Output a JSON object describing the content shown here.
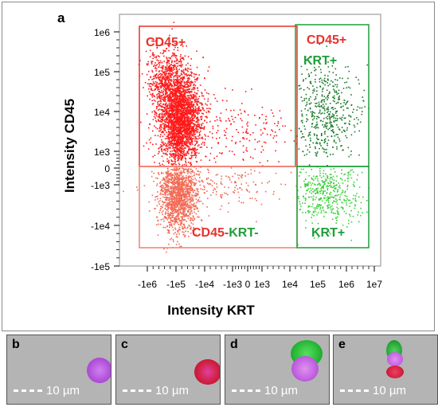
{
  "panel_a_label": "a",
  "chart_data": {
    "type": "scatter",
    "xlabel": "Intensity KRT",
    "ylabel": "Intensity CD45",
    "x_ticks": [
      "-1e6",
      "-1e5",
      "-1e4",
      "-1e3",
      "0",
      "1e3",
      "1e4",
      "1e5",
      "1e6",
      "1e7"
    ],
    "y_ticks": [
      "1e6",
      "1e5",
      "1e4",
      "1e3",
      "0",
      "-1e3",
      "-1e4",
      "-1e5"
    ],
    "scale": "biexponential",
    "gates": [
      {
        "name": "CD45+",
        "label": "CD45+",
        "color": "#e8312a"
      },
      {
        "name": "CD45+KRT+",
        "label_line1": "CD45+",
        "label_line2": "KRT+",
        "color_line1": "#e8312a",
        "color_line2": "#1f9e3a"
      },
      {
        "name": "CD45-KRT-",
        "label_part1": "CD45-",
        "label_part2": "KRT-",
        "color_part1": "#e8312a",
        "color_part2": "#1f9e3a",
        "border_color": "#f08070"
      },
      {
        "name": "KRT+",
        "label": "KRT+",
        "color": "#1f9e3a"
      }
    ],
    "populations": [
      {
        "name": "CD45+",
        "color": "#ff1a1a",
        "x_center": "-1e5",
        "y_center": "1e4"
      },
      {
        "name": "CD45-KRT-",
        "color": "#f26a55",
        "x_center": "-1e5",
        "y_center": "-1e3"
      },
      {
        "name": "CD45+KRT+",
        "color": "#1a7a2a",
        "x_center": "1e5",
        "y_center": "1e4"
      },
      {
        "name": "KRT+",
        "color": "#3ad13a",
        "x_center": "1e5",
        "y_center": "-1e3"
      }
    ]
  },
  "micro_panels": [
    {
      "label": "b",
      "scale": "10 µm"
    },
    {
      "label": "c",
      "scale": "10 µm"
    },
    {
      "label": "d",
      "scale": "10 µm"
    },
    {
      "label": "e",
      "scale": "10 µm"
    }
  ]
}
